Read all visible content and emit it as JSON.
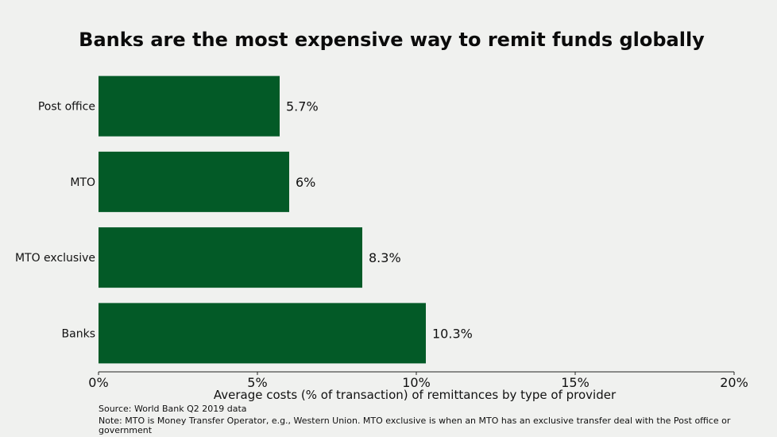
{
  "chart_data": {
    "type": "bar",
    "orientation": "horizontal",
    "title": "Banks are the most expensive way to remit funds globally",
    "categories": [
      "Post office",
      "MTO",
      "MTO exclusive",
      "Banks"
    ],
    "values": [
      5.7,
      6,
      8.3,
      10.3
    ],
    "value_labels": [
      "5.7%",
      "6%",
      "8.3%",
      "10.3%"
    ],
    "xlabel": "Average costs (% of transaction) of remittances by type of provider",
    "ylabel": "",
    "xlim": [
      0,
      20
    ],
    "xticks": [
      0,
      5,
      10,
      15,
      20
    ],
    "xtick_labels": [
      "0%",
      "5%",
      "10%",
      "15%",
      "20%"
    ],
    "bar_color": "#035a27",
    "background": "#f0f1ef",
    "grid": false
  },
  "footer": {
    "source": "Source: World Bank Q2 2019 data",
    "note": "Note: MTO is Money Transfer Operator, e.g., Western Union. MTO exclusive is when an MTO has an exclusive transfer deal with the Post office or government"
  }
}
